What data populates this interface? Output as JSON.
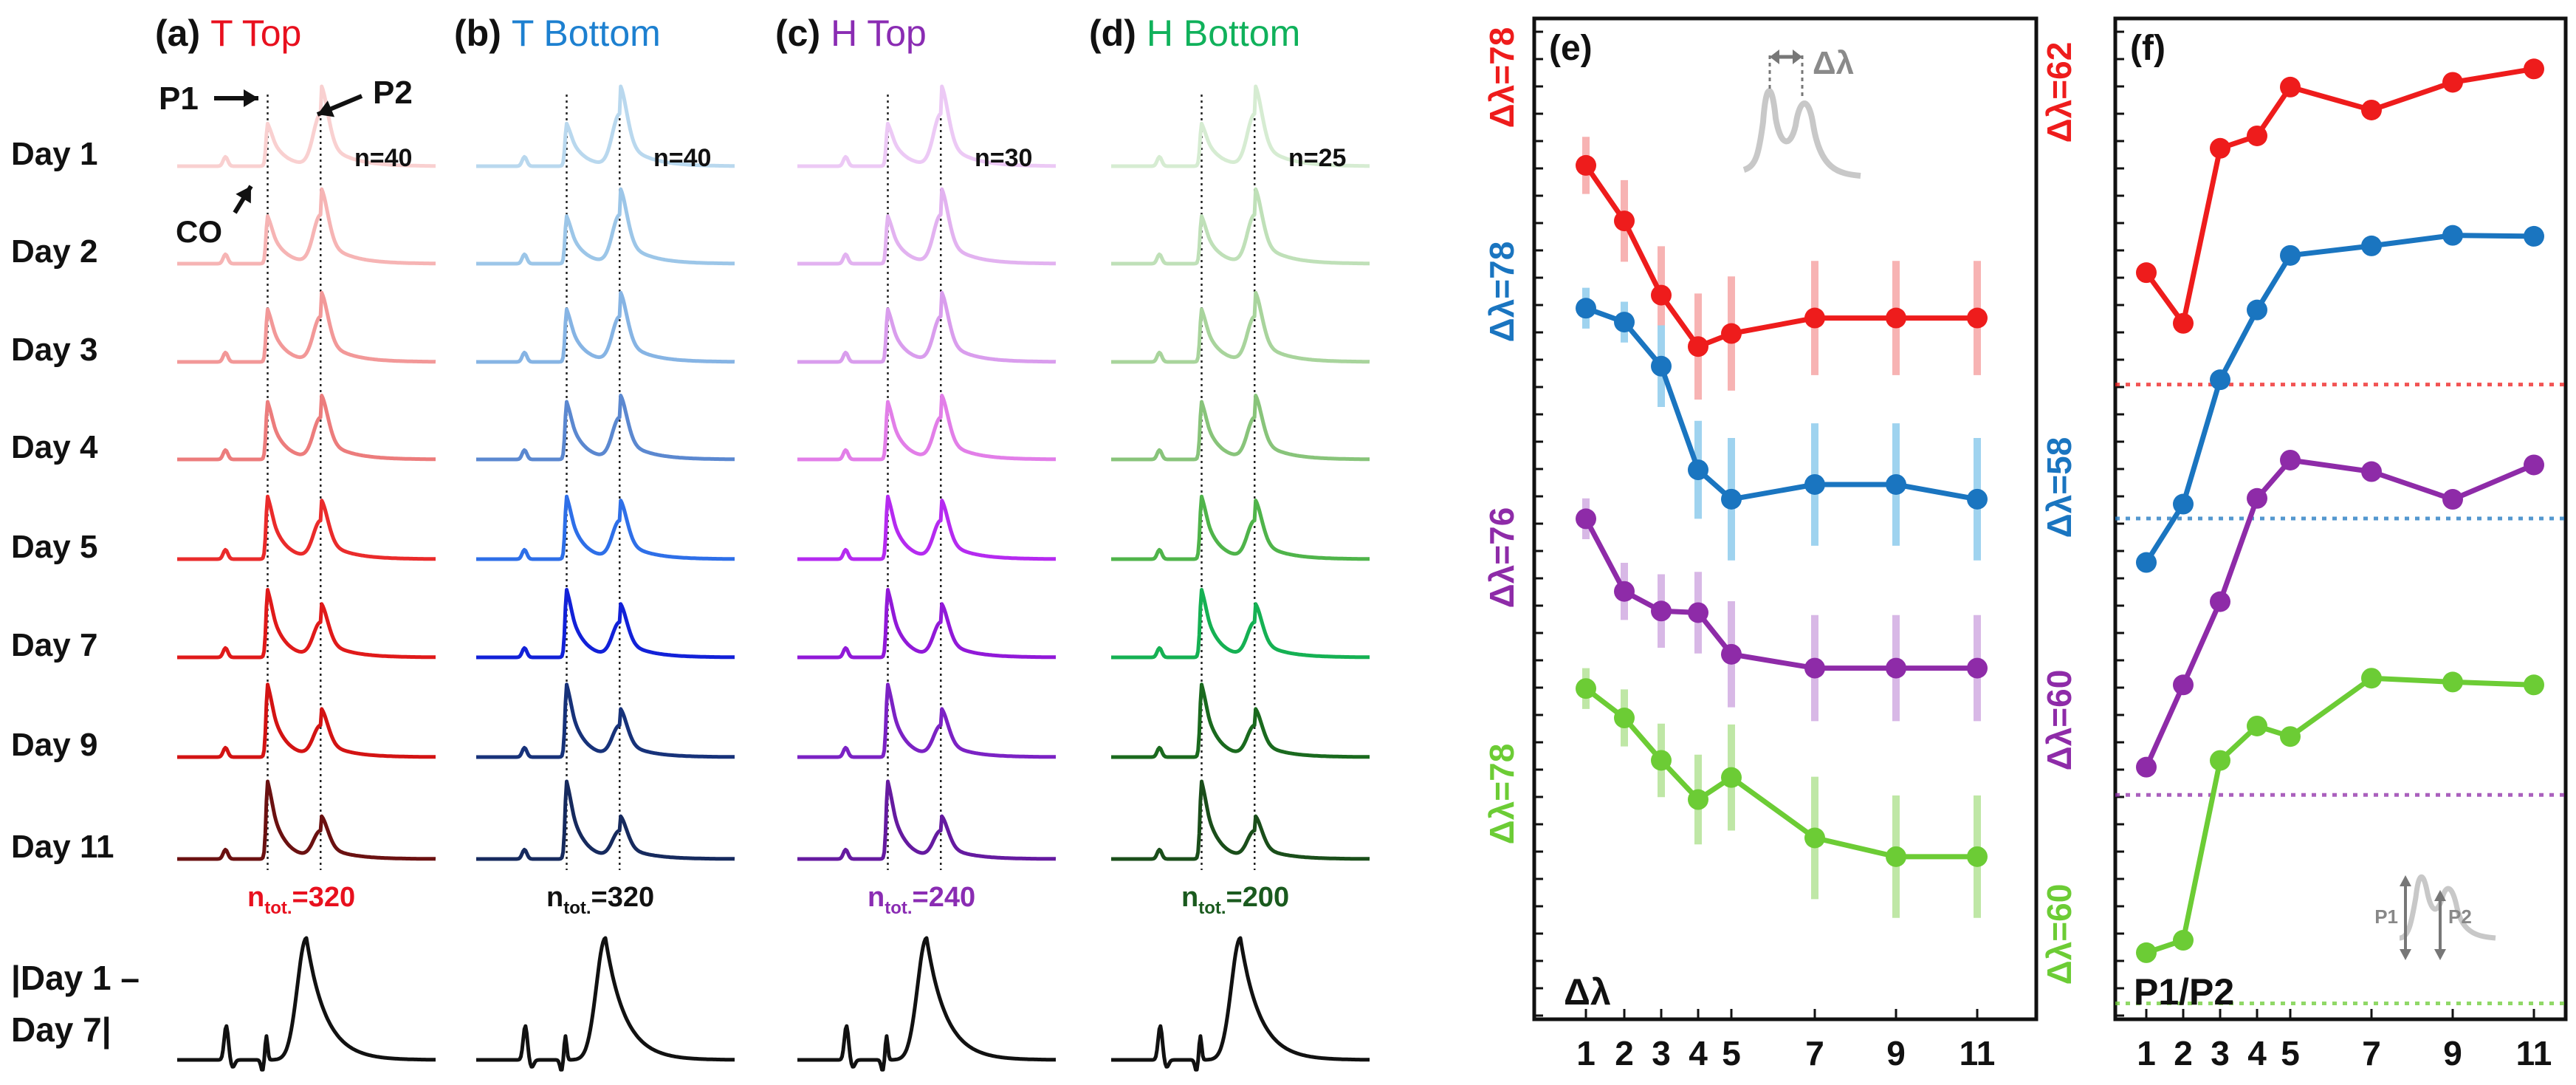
{
  "chart_data": [
    {
      "type": "line",
      "description": "Panels (a)-(d): spectra stacked by day, line color shade encodes day",
      "day_labels": [
        "Day 1",
        "Day 2",
        "Day 3",
        "Day 4",
        "Day 5",
        "Day 7",
        "Day 9",
        "Day 11"
      ],
      "annotations": {
        "p1": "P1",
        "p2": "P2",
        "co": "CO"
      },
      "difference_label": {
        "line1": "|Day 1 –",
        "line2": "Day 7|"
      },
      "panels": [
        {
          "letter": "(a)",
          "title": "T Top",
          "title_color": "#e8101e",
          "n": "n=40",
          "ntot_prefix": "n",
          "ntot_sub": "tot.",
          "ntot_value": "=320",
          "ntot_color": "#e8101e",
          "colors": [
            "#f9d0d0",
            "#f6b4b4",
            "#f29898",
            "#ec7c7c",
            "#ea2b2b",
            "#e01a1a",
            "#d31313",
            "#6b1111"
          ]
        },
        {
          "letter": "(b)",
          "title": "T Bottom",
          "title_color": "#1d80d0",
          "n": "n=40",
          "ntot_prefix": "n",
          "ntot_sub": "tot.",
          "ntot_value": "=320",
          "ntot_color": "#111111",
          "colors": [
            "#b9d8ee",
            "#9cc6e8",
            "#86b4e4",
            "#5b88d0",
            "#2e6fe8",
            "#1221d8",
            "#17327a",
            "#162a5e"
          ]
        },
        {
          "letter": "(c)",
          "title": "H Top",
          "title_color": "#8a2cb3",
          "n": "n=30",
          "ntot_prefix": "n",
          "ntot_sub": "tot.",
          "ntot_value": "=240",
          "ntot_color": "#8a2cb3",
          "colors": [
            "#ecc9f5",
            "#e2b2f0",
            "#d99ded",
            "#e27ee8",
            "#b52af0",
            "#9119d8",
            "#7b22c4",
            "#651aa0"
          ]
        },
        {
          "letter": "(d)",
          "title": "H Bottom",
          "title_color": "#10b15b",
          "n": "n=25",
          "ntot_prefix": "n",
          "ntot_sub": "tot.",
          "ntot_value": "=200",
          "ntot_color": "#1a5a1e",
          "colors": [
            "#d6ecd2",
            "#bfe0b8",
            "#a8d49c",
            "#88c47a",
            "#4fb44a",
            "#15b153",
            "#1a6a1e",
            "#1a4e1a"
          ]
        }
      ]
    },
    {
      "type": "line",
      "panel": "(e)",
      "xlabel_inside": "Δλ",
      "inset_label": "Δλ",
      "x": [
        1,
        2,
        3,
        4,
        5,
        7,
        9,
        11
      ],
      "x_tick_labels": [
        "1",
        "2",
        "3",
        "4",
        "5",
        "7",
        "9",
        "11"
      ],
      "ylim": [
        0,
        100
      ],
      "note": "Values are relative vertical positions in arbitrary units (no numeric y-axis labels shown)",
      "series": [
        {
          "name": "T Top",
          "color": "#ee1c1c",
          "err_color": "#f7b3b3",
          "left_label": "Δλ=78",
          "right_label": "Δλ=62",
          "values": [
            91.5,
            84.7,
            75.6,
            69.3,
            70.9,
            72.8,
            72.8,
            72.8
          ],
          "errors": [
            3.5,
            5,
            6,
            6.5,
            7,
            7,
            7,
            7
          ]
        },
        {
          "name": "T Bottom",
          "color": "#1a75c0",
          "err_color": "#9fd3ef",
          "left_label": "Δλ=78",
          "right_label": "Δλ=58",
          "values": [
            74.0,
            72.3,
            66.9,
            54.2,
            50.6,
            52.4,
            52.4,
            50.6
          ],
          "errors": [
            2.5,
            2.5,
            5,
            6,
            7.5,
            7.5,
            7.5,
            7.5
          ]
        },
        {
          "name": "H Top",
          "color": "#8e2ba8",
          "err_color": "#d8b8e6",
          "left_label": "Δλ=76",
          "right_label": "Δλ=60",
          "values": [
            48.2,
            39.3,
            36.9,
            36.7,
            31.6,
            29.9,
            29.9,
            29.9
          ],
          "errors": [
            2.5,
            3.5,
            4.5,
            5,
            6.5,
            6.5,
            6.5,
            6.5
          ]
        },
        {
          "name": "H Bottom",
          "color": "#6ccc35",
          "err_color": "#bfe7a6",
          "left_label": "Δλ=78",
          "right_label": "Δλ=60",
          "values": [
            27.4,
            23.8,
            18.6,
            13.8,
            16.5,
            9.1,
            6.8,
            6.8
          ],
          "errors": [
            2.5,
            3.5,
            4.5,
            5.5,
            6.5,
            7.5,
            7.5,
            7.5
          ]
        }
      ]
    },
    {
      "type": "line",
      "panel": "(f)",
      "xlabel_inside": "P1/P2",
      "inset_labels": {
        "p1": "P1",
        "p2": "P2"
      },
      "x": [
        1,
        2,
        3,
        4,
        5,
        7,
        9,
        11
      ],
      "x_tick_labels": [
        "1",
        "2",
        "3",
        "4",
        "5",
        "7",
        "9",
        "11"
      ],
      "ylim": [
        0,
        100
      ],
      "note": "Values are relative vertical positions in arbitrary units (no numeric y-axis labels shown)",
      "series": [
        {
          "name": "T Top",
          "color": "#ee1c1c",
          "baseline": 65.2,
          "values": [
            76.9,
            71.6,
            89.9,
            91.2,
            96.3,
            93.9,
            96.8,
            98.2
          ]
        },
        {
          "name": "T Bottom",
          "color": "#1a75c0",
          "baseline": 51.2,
          "values": [
            46.6,
            52.7,
            65.7,
            73.0,
            78.7,
            79.7,
            80.8,
            80.7
          ]
        },
        {
          "name": "H Top",
          "color": "#8e2ba8",
          "baseline": 22.3,
          "values": [
            25.2,
            33.8,
            42.5,
            53.3,
            57.3,
            56.1,
            53.2,
            56.8
          ]
        },
        {
          "name": "H Bottom",
          "color": "#6ccc35",
          "baseline": 0.5,
          "values": [
            5.8,
            7.1,
            25.9,
            29.5,
            28.4,
            34.5,
            34.1,
            33.8
          ]
        }
      ]
    }
  ]
}
